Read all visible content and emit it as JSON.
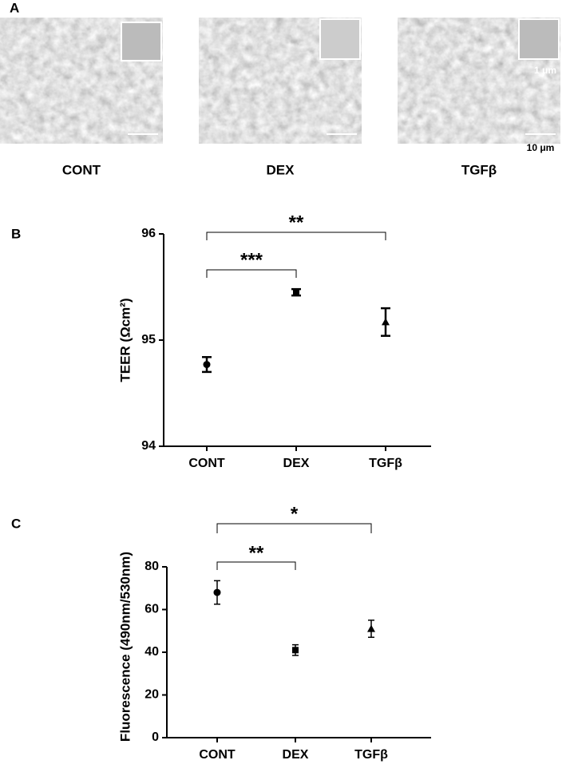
{
  "panel_a": {
    "label": "A",
    "captions": [
      "CONT",
      "DEX",
      "TGFβ"
    ],
    "scale_labels": [
      "1 μm",
      "10 μm"
    ]
  },
  "chart_data": [
    {
      "type": "dot",
      "label": "B",
      "ylabel": "TEER (Ωcm²)",
      "categories": [
        "CONT",
        "DEX",
        "TGFβ"
      ],
      "values": [
        94.77,
        95.45,
        95.17
      ],
      "errors": [
        0.07,
        0.03,
        0.13
      ],
      "color": "#000000",
      "markers": [
        "circle",
        "square",
        "triangle"
      ],
      "ylim": [
        94,
        96
      ],
      "yticks": [
        94,
        95,
        96
      ],
      "annotations": [
        "***",
        "**"
      ],
      "grid": false
    },
    {
      "type": "dot",
      "label": "C",
      "ylabel": "Fluorescence  (490nm/530nm)",
      "categories": [
        "CONT",
        "DEX",
        "TGFβ"
      ],
      "values": [
        68,
        41,
        51
      ],
      "errors": [
        5.5,
        2.5,
        4
      ],
      "color": "#000000",
      "markers": [
        "circle",
        "square",
        "triangle"
      ],
      "ylim": [
        0,
        80
      ],
      "yticks": [
        0,
        20,
        40,
        60,
        80
      ],
      "annotations": [
        "**",
        "*"
      ],
      "grid": false
    }
  ]
}
